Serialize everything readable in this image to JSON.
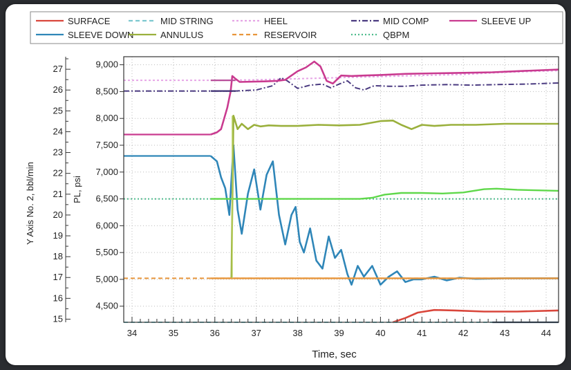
{
  "chart_data": {
    "type": "line",
    "xlabel": "Time, sec",
    "ylabel": "PL, psi",
    "y2label": "Y Axis No. 2, bbl/min",
    "xlim": [
      33.8,
      44.3
    ],
    "ylim": [
      4200,
      9150
    ],
    "y2lim": [
      14.85,
      27.6
    ],
    "x_ticks": [
      34,
      35,
      36,
      37,
      38,
      39,
      40,
      41,
      42,
      43,
      44
    ],
    "y_ticks": [
      4500,
      5000,
      5500,
      6000,
      6500,
      7000,
      7500,
      8000,
      8500,
      9000
    ],
    "y_tick_labels": [
      "4,500",
      "5,000",
      "5,500",
      "6,000",
      "6,500",
      "7,000",
      "7,500",
      "8,000",
      "8,500",
      "9,000"
    ],
    "y2_ticks": [
      15,
      16,
      17,
      18,
      19,
      20,
      21,
      22,
      23,
      24,
      25,
      26,
      27
    ],
    "grid": true,
    "legend_position": "top",
    "series": [
      {
        "name": "SURFACE",
        "color": "#d9463b",
        "dash": "solid",
        "points": [
          [
            33.8,
            4200
          ],
          [
            40.3,
            4200
          ],
          [
            40.6,
            4280
          ],
          [
            40.9,
            4380
          ],
          [
            41.3,
            4430
          ],
          [
            41.8,
            4420
          ],
          [
            42.5,
            4400
          ],
          [
            43.3,
            4400
          ],
          [
            44.3,
            4420
          ]
        ]
      },
      {
        "name": "SLEEVE DOWN",
        "color": "#2f86b8",
        "dash": "solid",
        "points": [
          [
            33.8,
            7300
          ],
          [
            35.9,
            7300
          ],
          [
            36.05,
            7200
          ],
          [
            36.15,
            6900
          ],
          [
            36.25,
            6700
          ],
          [
            36.35,
            6200
          ],
          [
            36.45,
            7500
          ],
          [
            36.55,
            6300
          ],
          [
            36.65,
            5850
          ],
          [
            36.8,
            6600
          ],
          [
            36.95,
            7050
          ],
          [
            37.1,
            6300
          ],
          [
            37.25,
            6950
          ],
          [
            37.4,
            7200
          ],
          [
            37.55,
            6200
          ],
          [
            37.7,
            5650
          ],
          [
            37.85,
            6200
          ],
          [
            37.95,
            6350
          ],
          [
            38.05,
            5700
          ],
          [
            38.15,
            5500
          ],
          [
            38.3,
            5950
          ],
          [
            38.45,
            5350
          ],
          [
            38.6,
            5200
          ],
          [
            38.75,
            5800
          ],
          [
            38.9,
            5400
          ],
          [
            39.05,
            5550
          ],
          [
            39.2,
            5100
          ],
          [
            39.3,
            4900
          ],
          [
            39.45,
            5250
          ],
          [
            39.6,
            5050
          ],
          [
            39.8,
            5250
          ],
          [
            40.0,
            4900
          ],
          [
            40.2,
            5050
          ],
          [
            40.4,
            5150
          ],
          [
            40.6,
            4950
          ],
          [
            40.8,
            5000
          ],
          [
            41.0,
            5000
          ],
          [
            41.3,
            5050
          ],
          [
            41.6,
            4980
          ],
          [
            41.9,
            5030
          ],
          [
            42.3,
            5010
          ],
          [
            43.0,
            5020
          ],
          [
            44.3,
            5020
          ]
        ]
      },
      {
        "name": "MID STRING",
        "color": "#7cc8cf",
        "dash": "6,4",
        "points": [
          [
            33.8,
            4200
          ],
          [
            44.3,
            4200
          ]
        ]
      },
      {
        "name": "ANNULUS",
        "color": "#9ab03c",
        "dash": "solid",
        "points": [
          [
            33.8,
            5020
          ],
          [
            36.4,
            5020
          ],
          [
            36.45,
            8050
          ],
          [
            36.55,
            7800
          ],
          [
            36.65,
            7900
          ],
          [
            36.8,
            7800
          ],
          [
            36.95,
            7880
          ],
          [
            37.1,
            7850
          ],
          [
            37.3,
            7870
          ],
          [
            37.6,
            7860
          ],
          [
            38.0,
            7860
          ],
          [
            38.5,
            7880
          ],
          [
            39.0,
            7870
          ],
          [
            39.5,
            7880
          ],
          [
            40.0,
            7950
          ],
          [
            40.3,
            7960
          ],
          [
            40.5,
            7880
          ],
          [
            40.75,
            7800
          ],
          [
            41.0,
            7880
          ],
          [
            41.3,
            7860
          ],
          [
            41.7,
            7880
          ],
          [
            42.3,
            7880
          ],
          [
            43.0,
            7900
          ],
          [
            44.3,
            7900
          ]
        ]
      },
      {
        "name": "HEEL",
        "color": "#e6a5e6",
        "dash": "3,3",
        "points": [
          [
            33.8,
            8710
          ],
          [
            35.9,
            8710
          ],
          [
            36.2,
            8710
          ],
          [
            37.0,
            8720
          ],
          [
            38.0,
            8740
          ],
          [
            39.0,
            8760
          ],
          [
            40.5,
            8790
          ],
          [
            42.0,
            8820
          ],
          [
            43.0,
            8860
          ],
          [
            44.3,
            8890
          ]
        ]
      },
      {
        "name": "RESERVOIR",
        "color": "#e8953a",
        "dash": "6,4",
        "points": [
          [
            33.8,
            5020
          ],
          [
            44.3,
            5020
          ]
        ]
      },
      {
        "name": "MID COMP",
        "color": "#4a3a80",
        "dash": "8,3,2,3",
        "points": [
          [
            33.8,
            8510
          ],
          [
            35.9,
            8510
          ],
          [
            36.5,
            8510
          ],
          [
            37.0,
            8530
          ],
          [
            37.4,
            8610
          ],
          [
            37.6,
            8760
          ],
          [
            37.75,
            8700
          ],
          [
            38.0,
            8560
          ],
          [
            38.3,
            8620
          ],
          [
            38.6,
            8640
          ],
          [
            38.8,
            8570
          ],
          [
            39.0,
            8640
          ],
          [
            39.2,
            8700
          ],
          [
            39.4,
            8570
          ],
          [
            39.6,
            8530
          ],
          [
            39.85,
            8610
          ],
          [
            40.2,
            8600
          ],
          [
            40.6,
            8600
          ],
          [
            41.0,
            8620
          ],
          [
            41.6,
            8630
          ],
          [
            42.2,
            8620
          ],
          [
            42.8,
            8630
          ],
          [
            43.5,
            8640
          ],
          [
            44.3,
            8660
          ]
        ]
      },
      {
        "name": "QBPM",
        "color": "#4dbb8c",
        "dash": "2,3",
        "points": [
          [
            33.8,
            6500
          ],
          [
            44.3,
            6500
          ]
        ]
      },
      {
        "name": "SLEEVE UP",
        "color": "#c93a8f",
        "dash": "solid",
        "points": [
          [
            33.8,
            7700
          ],
          [
            35.9,
            7700
          ],
          [
            36.05,
            7740
          ],
          [
            36.15,
            7800
          ],
          [
            36.3,
            8200
          ],
          [
            36.38,
            8500
          ],
          [
            36.42,
            8790
          ],
          [
            36.48,
            8750
          ],
          [
            36.6,
            8680
          ],
          [
            37.2,
            8690
          ],
          [
            37.5,
            8700
          ],
          [
            37.7,
            8720
          ],
          [
            38.0,
            8880
          ],
          [
            38.2,
            8950
          ],
          [
            38.4,
            9060
          ],
          [
            38.55,
            8970
          ],
          [
            38.7,
            8700
          ],
          [
            38.85,
            8650
          ],
          [
            39.05,
            8800
          ],
          [
            39.3,
            8790
          ],
          [
            39.6,
            8800
          ],
          [
            40.0,
            8810
          ],
          [
            40.6,
            8830
          ],
          [
            41.3,
            8840
          ],
          [
            42.0,
            8850
          ],
          [
            42.7,
            8860
          ],
          [
            43.3,
            8880
          ],
          [
            44.3,
            8910
          ]
        ]
      }
    ],
    "qbpm_green_solid": {
      "name": "QBPM",
      "color": "#5fd84a",
      "points": [
        [
          35.9,
          6500
        ],
        [
          39.5,
          6500
        ],
        [
          39.8,
          6520
        ],
        [
          40.1,
          6580
        ],
        [
          40.5,
          6610
        ],
        [
          41.0,
          6610
        ],
        [
          41.5,
          6600
        ],
        [
          42.0,
          6620
        ],
        [
          42.5,
          6680
        ],
        [
          42.8,
          6690
        ],
        [
          43.3,
          6670
        ],
        [
          43.8,
          6660
        ],
        [
          44.3,
          6650
        ]
      ]
    },
    "spike_line": {
      "color": "#b8d060",
      "x": 36.42,
      "y_from": 5020,
      "y_to": 8050
    }
  },
  "legend": {
    "items": [
      {
        "label": "SURFACE",
        "color": "#d9463b",
        "dash": "solid"
      },
      {
        "label": "MID STRING",
        "color": "#7cc8cf",
        "dash": "6,4"
      },
      {
        "label": "HEEL",
        "color": "#e6a5e6",
        "dash": "3,3"
      },
      {
        "label": "MID COMP",
        "color": "#4a3a80",
        "dash": "8,3,2,3"
      },
      {
        "label": "SLEEVE UP",
        "color": "#c93a8f",
        "dash": "solid"
      },
      {
        "label": "SLEEVE DOWN",
        "color": "#2f86b8",
        "dash": "solid"
      },
      {
        "label": "ANNULUS",
        "color": "#9ab03c",
        "dash": "solid"
      },
      {
        "label": "RESERVOIR",
        "color": "#e8953a",
        "dash": "6,4"
      },
      {
        "label": "QBPM",
        "color": "#4dbb8c",
        "dash": "2,3"
      }
    ]
  }
}
